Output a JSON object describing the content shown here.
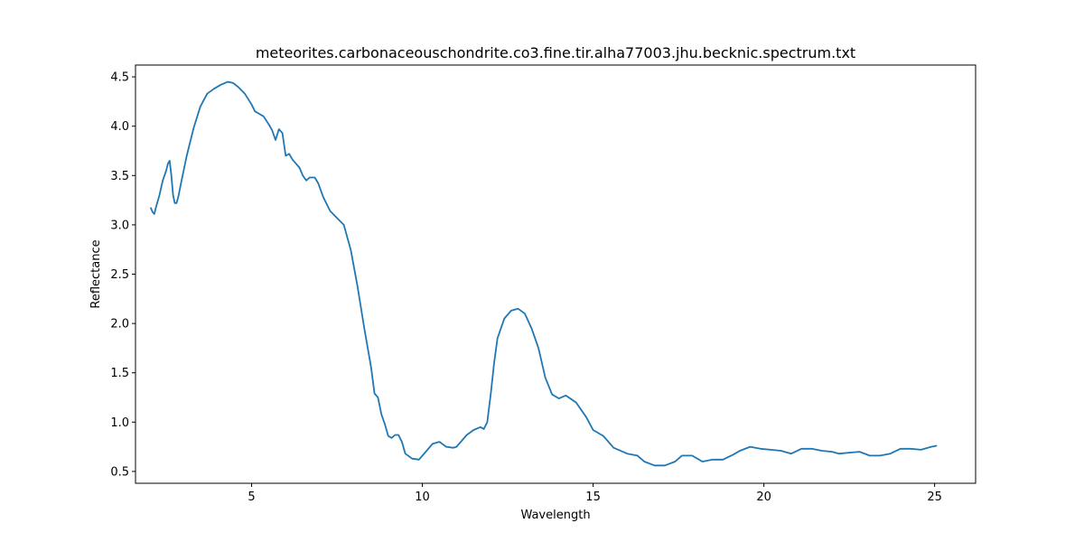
{
  "chart_data": {
    "type": "line",
    "title": "meteorites.carbonaceouschondrite.co3.fine.tir.alha77003.jhu.becknic.spectrum.txt",
    "xlabel": "Wavelength",
    "ylabel": "Reflectance",
    "xlim": [
      1.6,
      26.2
    ],
    "ylim": [
      0.38,
      4.62
    ],
    "xticks": [
      5,
      10,
      15,
      20,
      25
    ],
    "yticks": [
      0.5,
      1.0,
      1.5,
      2.0,
      2.5,
      3.0,
      3.5,
      4.0,
      4.5
    ],
    "xtick_labels": [
      "5",
      "10",
      "15",
      "20",
      "25"
    ],
    "ytick_labels": [
      "0.5",
      "1.0",
      "1.5",
      "2.0",
      "2.5",
      "3.0",
      "3.5",
      "4.0",
      "4.5"
    ],
    "grid": false,
    "series": [
      {
        "color": "#1f77b4",
        "x": [
          2.05,
          2.1,
          2.15,
          2.2,
          2.3,
          2.4,
          2.5,
          2.55,
          2.6,
          2.65,
          2.7,
          2.75,
          2.8,
          2.85,
          2.95,
          3.1,
          3.3,
          3.5,
          3.7,
          3.9,
          4.1,
          4.3,
          4.45,
          4.6,
          4.8,
          5.0,
          5.1,
          5.2,
          5.35,
          5.5,
          5.6,
          5.7,
          5.8,
          5.9,
          6.0,
          6.1,
          6.2,
          6.3,
          6.4,
          6.5,
          6.6,
          6.7,
          6.85,
          6.95,
          7.1,
          7.3,
          7.5,
          7.7,
          7.9,
          8.1,
          8.3,
          8.5,
          8.6,
          8.7,
          8.8,
          8.9,
          9.0,
          9.1,
          9.2,
          9.3,
          9.4,
          9.5,
          9.7,
          9.9,
          10.1,
          10.3,
          10.5,
          10.7,
          10.9,
          11.0,
          11.2,
          11.3,
          11.5,
          11.7,
          11.8,
          11.9,
          12.0,
          12.1,
          12.2,
          12.4,
          12.6,
          12.8,
          13.0,
          13.2,
          13.4,
          13.6,
          13.8,
          14.0,
          14.2,
          14.5,
          14.8,
          15.0,
          15.3,
          15.6,
          16.0,
          16.3,
          16.5,
          16.8,
          17.1,
          17.4,
          17.6,
          17.9,
          18.2,
          18.5,
          18.8,
          19.1,
          19.3,
          19.6,
          19.9,
          20.2,
          20.5,
          20.8,
          21.1,
          21.4,
          21.7,
          22.0,
          22.2,
          22.5,
          22.8,
          23.1,
          23.4,
          23.7,
          24.0,
          24.3,
          24.6,
          24.9,
          25.05
        ],
        "y": [
          3.17,
          3.13,
          3.11,
          3.18,
          3.3,
          3.45,
          3.55,
          3.62,
          3.65,
          3.5,
          3.3,
          3.22,
          3.22,
          3.28,
          3.45,
          3.7,
          3.98,
          4.2,
          4.33,
          4.38,
          4.42,
          4.45,
          4.44,
          4.4,
          4.33,
          4.22,
          4.15,
          4.13,
          4.1,
          4.02,
          3.96,
          3.86,
          3.97,
          3.93,
          3.7,
          3.72,
          3.66,
          3.62,
          3.58,
          3.5,
          3.45,
          3.48,
          3.48,
          3.42,
          3.28,
          3.14,
          3.07,
          3.0,
          2.75,
          2.38,
          1.95,
          1.55,
          1.29,
          1.25,
          1.08,
          0.98,
          0.86,
          0.84,
          0.87,
          0.87,
          0.8,
          0.68,
          0.63,
          0.62,
          0.7,
          0.78,
          0.8,
          0.75,
          0.74,
          0.75,
          0.83,
          0.87,
          0.92,
          0.95,
          0.93,
          1.0,
          1.28,
          1.6,
          1.85,
          2.05,
          2.13,
          2.15,
          2.1,
          1.95,
          1.75,
          1.45,
          1.28,
          1.24,
          1.27,
          1.2,
          1.05,
          0.92,
          0.86,
          0.74,
          0.68,
          0.66,
          0.6,
          0.56,
          0.56,
          0.6,
          0.66,
          0.66,
          0.6,
          0.62,
          0.62,
          0.67,
          0.71,
          0.75,
          0.73,
          0.72,
          0.71,
          0.68,
          0.73,
          0.73,
          0.71,
          0.7,
          0.68,
          0.69,
          0.7,
          0.66,
          0.66,
          0.68,
          0.73,
          0.73,
          0.72,
          0.75,
          0.76
        ]
      }
    ]
  }
}
